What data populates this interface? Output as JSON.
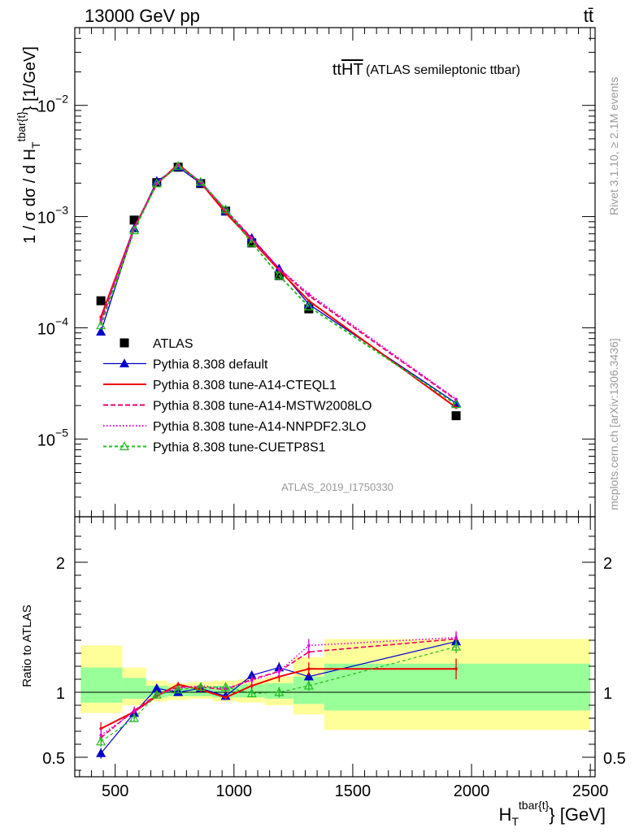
{
  "header": {
    "energy_label": "13000 GeV pp",
    "process_label": "tt̄"
  },
  "side_labels": {
    "rivet": "Rivet 3.1.10, ≥ 2.1M events",
    "mcplots": "mcplots.cern.ch [arXiv:1306.3436]"
  },
  "chart_data": [
    {
      "type": "line",
      "panel": "main",
      "title_main": "tt",
      "title_overline": "HT",
      "title_suffix": "(ATLAS semileptonic ttbar)",
      "analysis_id": "ATLAS_2019_I1750330",
      "ylabel_prefix": "1 / σ dσ / d H",
      "ylabel_sub": "T",
      "ylabel_sup": "tbar{t}",
      "ylabel_suffix": "} [1/GeV]",
      "yscale": "log",
      "ylim": [
        2e-06,
        0.05
      ],
      "xlim": [
        330,
        2520
      ],
      "y_ticks": [
        {
          "value": 1e-05,
          "mantissa": "10",
          "exponent": "−5"
        },
        {
          "value": 0.0001,
          "mantissa": "10",
          "exponent": "−4"
        },
        {
          "value": 0.001,
          "mantissa": "10",
          "exponent": "−3"
        },
        {
          "value": 0.01,
          "mantissa": "10",
          "exponent": "−2"
        }
      ],
      "legend_position": "bottom-left",
      "x": [
        440,
        580,
        675,
        765,
        860,
        965,
        1075,
        1190,
        1315,
        1935
      ],
      "series": [
        {
          "name": "ATLAS",
          "color": "#000000",
          "marker": "square",
          "dash": "none",
          "values": [
            0.000175,
            0.00093,
            0.00202,
            0.00278,
            0.00198,
            0.00112,
            0.00058,
            0.000295,
            0.000148,
            1.62e-05
          ]
        },
        {
          "name": "Pythia 8.308 default",
          "color": "#0000cc",
          "marker": "triangle",
          "dash": "none",
          "values": [
            9.2e-05,
            0.00078,
            0.00208,
            0.00278,
            0.00199,
            0.00111,
            0.00064,
            0.00034,
            0.000163,
            2.1e-05
          ]
        },
        {
          "name": "Pythia 8.308 tune-A14-CTEQL1",
          "color": "#ee0000",
          "marker": "none",
          "dash": "none",
          "values": [
            0.000125,
            0.00079,
            0.00197,
            0.00295,
            0.00202,
            0.00108,
            0.00061,
            0.00033,
            0.000175,
            1.92e-05
          ]
        },
        {
          "name": "Pythia 8.308 tune-A14-MSTW2008LO",
          "color": "#ee0066",
          "marker": "none",
          "dash": "6,3",
          "values": [
            0.000112,
            0.0008,
            0.00199,
            0.00288,
            0.00205,
            0.00114,
            0.00064,
            0.00034,
            0.000195,
            2.25e-05
          ]
        },
        {
          "name": "Pythia 8.308 tune-A14-NNPDF2.3LO",
          "color": "#dd00dd",
          "marker": "none",
          "dash": "1.5,2.5",
          "values": [
            0.000118,
            0.00079,
            0.00198,
            0.00286,
            0.00206,
            0.00115,
            0.00063,
            0.00034,
            0.000202,
            2.28e-05
          ]
        },
        {
          "name": "Pythia 8.308 tune-CUETP8S1",
          "color": "#22bb22",
          "marker": "triangle-open",
          "dash": "4,3",
          "values": [
            0.000105,
            0.00075,
            0.00198,
            0.00285,
            0.00205,
            0.00116,
            0.00058,
            0.000295,
            0.000155,
            2.05e-05
          ]
        }
      ]
    },
    {
      "type": "line",
      "panel": "ratio",
      "ylabel": "Ratio to ATLAS",
      "ylim": [
        0.35,
        2.35
      ],
      "y_ticks": [
        0.5,
        1,
        2
      ],
      "x_ticks": [
        500,
        1000,
        1500,
        2000,
        2500
      ],
      "xlabel_prefix": "H",
      "xlabel_sub": "T",
      "xlabel_sup": "tbar{t}",
      "xlabel_suffix": "} [GeV]",
      "bands": [
        {
          "x0": 355,
          "x1": 530,
          "yellow": [
            0.84,
            1.36
          ],
          "green": [
            0.92,
            1.19
          ]
        },
        {
          "x0": 530,
          "x1": 630,
          "yellow": [
            0.9,
            1.19
          ],
          "green": [
            0.95,
            1.11
          ]
        },
        {
          "x0": 630,
          "x1": 720,
          "yellow": [
            0.93,
            1.09
          ],
          "green": [
            0.96,
            1.05
          ]
        },
        {
          "x0": 720,
          "x1": 810,
          "yellow": [
            0.94,
            1.07
          ],
          "green": [
            0.97,
            1.04
          ]
        },
        {
          "x0": 810,
          "x1": 910,
          "yellow": [
            0.95,
            1.08
          ],
          "green": [
            0.97,
            1.04
          ]
        },
        {
          "x0": 910,
          "x1": 1020,
          "yellow": [
            0.93,
            1.09
          ],
          "green": [
            0.96,
            1.05
          ]
        },
        {
          "x0": 1020,
          "x1": 1130,
          "yellow": [
            0.92,
            1.1
          ],
          "green": [
            0.96,
            1.06
          ]
        },
        {
          "x0": 1130,
          "x1": 1250,
          "yellow": [
            0.9,
            1.12
          ],
          "green": [
            0.95,
            1.07
          ]
        },
        {
          "x0": 1250,
          "x1": 1380,
          "yellow": [
            0.83,
            1.27
          ],
          "green": [
            0.91,
            1.12
          ]
        },
        {
          "x0": 1380,
          "x1": 2500,
          "yellow": [
            0.71,
            1.41
          ],
          "green": [
            0.86,
            1.22
          ]
        }
      ],
      "series": [
        {
          "name": "Pythia 8.308 default",
          "color": "#0000cc",
          "marker": "triangle",
          "dash": "none",
          "width": 1.2,
          "values": [
            0.53,
            0.84,
            1.03,
            1.0,
            1.03,
            0.97,
            1.13,
            1.19,
            1.12,
            1.39
          ],
          "errors": [
            0.04,
            0.03,
            0.02,
            0.02,
            0.02,
            0.02,
            0.03,
            0.04,
            0.04,
            0.05
          ]
        },
        {
          "name": "Pythia 8.308 tune-A14-CTEQL1",
          "color": "#ee0000",
          "marker": "none",
          "dash": "none",
          "width": 2,
          "values": [
            0.72,
            0.85,
            0.97,
            1.06,
            1.02,
            0.96,
            1.05,
            1.12,
            1.18,
            1.18
          ],
          "errors": [
            0.05,
            0.03,
            0.02,
            0.02,
            0.02,
            0.02,
            0.03,
            0.04,
            0.05,
            0.08
          ]
        },
        {
          "name": "Pythia 8.308 tune-A14-MSTW2008LO",
          "color": "#ee0066",
          "marker": "none",
          "dash": "6,3",
          "width": 1.6,
          "values": [
            0.65,
            0.86,
            0.98,
            1.04,
            1.04,
            1.02,
            1.1,
            1.16,
            1.31,
            1.41
          ],
          "errors": [
            0.05,
            0.03,
            0.02,
            0.02,
            0.02,
            0.02,
            0.03,
            0.04,
            0.05,
            0.05
          ]
        },
        {
          "name": "Pythia 8.308 tune-A14-NNPDF2.3LO",
          "color": "#dd00dd",
          "marker": "none",
          "dash": "1.5,2.5",
          "width": 1.6,
          "values": [
            0.67,
            0.85,
            0.98,
            1.03,
            1.05,
            1.03,
            1.09,
            1.16,
            1.36,
            1.42
          ],
          "errors": [
            0.05,
            0.03,
            0.02,
            0.02,
            0.02,
            0.02,
            0.03,
            0.04,
            0.05,
            0.05
          ]
        },
        {
          "name": "Pythia 8.308 tune-CUETP8S1",
          "color": "#22bb22",
          "marker": "triangle-open",
          "dash": "4,3",
          "width": 1.2,
          "values": [
            0.62,
            0.8,
            0.98,
            1.02,
            1.04,
            1.04,
            0.99,
            1.0,
            1.05,
            1.35
          ],
          "errors": [
            0.04,
            0.03,
            0.02,
            0.02,
            0.02,
            0.02,
            0.03,
            0.04,
            0.04,
            0.05
          ]
        }
      ]
    }
  ]
}
